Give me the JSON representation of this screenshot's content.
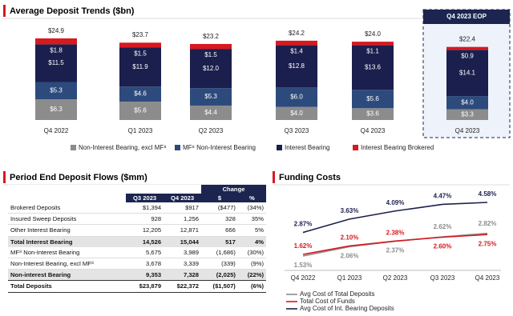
{
  "chart_data": [
    {
      "type": "bar",
      "stacked": true,
      "title": "Average Deposit Trends ($bn)",
      "annotation": "Q4 2023 EOP",
      "categories": [
        "Q4 2022",
        "Q1 2023",
        "Q2 2023",
        "Q3 2023",
        "Q4 2023",
        "Q4 2023"
      ],
      "series": [
        {
          "name": "Non-Interest Bearing, excl MF⁸",
          "color": "#8c8c8c",
          "values": [
            6.3,
            5.6,
            4.4,
            4.0,
            3.6,
            3.3
          ],
          "value_labels": [
            "$6.3",
            "$5.6",
            "$4.4",
            "$4.0",
            "$3.6",
            "$3.3"
          ]
        },
        {
          "name": "MF⁸ Non-Interest Bearing",
          "color": "#2d4a7c",
          "values": [
            5.3,
            4.6,
            5.3,
            6.0,
            5.6,
            4.0
          ],
          "value_labels": [
            "$5.3",
            "$4.6",
            "$5.3",
            "$6.0",
            "$5.6",
            "$4.0"
          ]
        },
        {
          "name": "Interest Bearing",
          "color": "#1b1f4d",
          "values": [
            11.5,
            11.9,
            12.0,
            12.8,
            13.6,
            14.1
          ],
          "value_labels": [
            "$11.5",
            "$11.9",
            "$12.0",
            "$12.8",
            "$13.6",
            "$14.1"
          ]
        },
        {
          "name": "Interest Bearing Brokered",
          "color": "#d71920",
          "values": [
            1.8,
            1.5,
            1.5,
            1.4,
            1.1,
            0.9
          ],
          "value_labels": [
            "$1.8",
            "$1.5",
            "$1.5",
            "$1.4",
            "$1.1",
            "$0.9"
          ]
        }
      ],
      "totals": [
        24.9,
        23.7,
        23.2,
        24.2,
        24.0,
        22.4
      ],
      "total_labels": [
        "$24.9",
        "$23.7",
        "$23.2",
        "$24.2",
        "$24.0",
        "$22.4"
      ]
    },
    {
      "type": "line",
      "title": "Funding Costs",
      "categories": [
        "Q4 2022",
        "Q1 2023",
        "Q2 2023",
        "Q3 2023",
        "Q4 2023"
      ],
      "series": [
        {
          "name": "Avg Cost of Total Deposits",
          "color": "#8c8c8c",
          "values": [
            1.53,
            2.06,
            2.37,
            2.62,
            2.82
          ],
          "value_labels": [
            "1.53%",
            "2.06%",
            "2.37%",
            "2.62%",
            "2.82%"
          ]
        },
        {
          "name": "Total Cost of Funds",
          "color": "#d71920",
          "values": [
            1.62,
            2.1,
            2.38,
            2.6,
            2.75
          ],
          "value_labels": [
            "1.62%",
            "2.10%",
            "2.38%",
            "2.60%",
            "2.75%"
          ]
        },
        {
          "name": "Avg Cost of Int. Bearing Deposits",
          "color": "#1b1f4d",
          "values": [
            2.87,
            3.63,
            4.09,
            4.47,
            4.58
          ],
          "value_labels": [
            "2.87%",
            "3.63%",
            "4.09%",
            "4.47%",
            "4.58%"
          ]
        }
      ]
    }
  ],
  "table": {
    "title": "Period End Deposit Flows ($mm)",
    "group_header": "Change",
    "columns": [
      "Q3 2023",
      "Q4 2023",
      "$",
      "%"
    ],
    "rows": [
      [
        "Brokered Deposits",
        "$1,394",
        "$917",
        "($477)",
        "(34%)"
      ],
      [
        "Insured Sweep Deposits",
        "928",
        "1,256",
        "328",
        "35%"
      ],
      [
        "Other Interest Bearing",
        "12,205",
        "12,871",
        "666",
        "5%"
      ],
      [
        "Total Interest Bearing",
        "14,526",
        "15,044",
        "517",
        "4%"
      ],
      [
        "MF⁸ Non-Interest Bearing",
        "5,675",
        "3,989",
        "(1,686)",
        "(30%)"
      ],
      [
        "Non-Interest Bearing, excl MF⁸",
        "3,678",
        "3,339",
        "(339)",
        "(9%)"
      ],
      [
        "Non-interest Bearing",
        "9,353",
        "7,328",
        "(2,025)",
        "(22%)"
      ],
      [
        "Total Deposits",
        "$23,879",
        "$22,372",
        "($1,507)",
        "(6%)"
      ]
    ]
  }
}
